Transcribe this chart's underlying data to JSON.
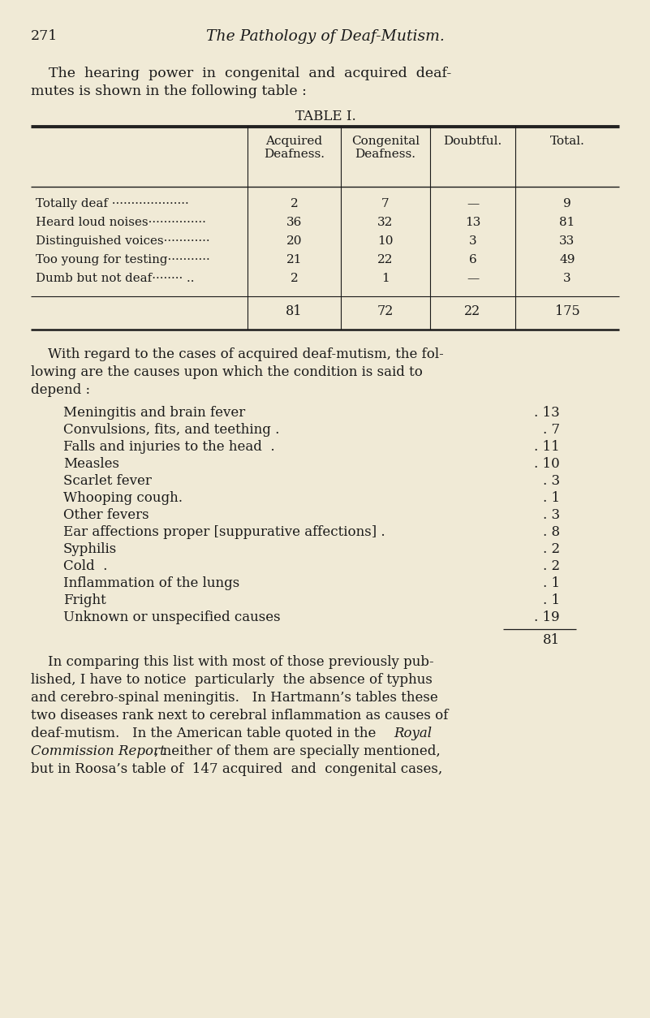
{
  "bg_color": "#f0ead6",
  "text_color": "#1a1a1a",
  "page_number": "271",
  "page_title": "The Pathology of Deaf-Mutism.",
  "table_title": "TABLE I.",
  "table_headers_line1": [
    "",
    "Acquired",
    "Congenital",
    "Doubtful.",
    "Total."
  ],
  "table_headers_line2": [
    "",
    "Deafness.",
    "Deafness.",
    "",
    ""
  ],
  "table_rows": [
    [
      "Totally deaf ······················",
      "2",
      "7",
      "—",
      "9"
    ],
    [
      "Heard loud noises······················",
      "36",
      "32",
      "13",
      "81"
    ],
    [
      "Distinguished voices······················",
      "20",
      "10",
      "3",
      "33"
    ],
    [
      "Too young for testing······················",
      "21",
      "22",
      "6",
      "49"
    ],
    [
      "Dumb but not deaf········ ..",
      "2",
      "1",
      "—",
      "3"
    ]
  ],
  "table_totals": [
    "",
    "81",
    "72",
    "22",
    "175"
  ],
  "para2_lines": [
    "    With regard to the cases of acquired deaf-mutism, the fol-",
    "lowing are the causes upon which the condition is said to",
    "depend :"
  ],
  "causes": [
    [
      "Meningitis and brain fever",
      ". . . . 13"
    ],
    [
      "Convulsions, fits, and teething .",
      ". . . 7"
    ],
    [
      "Falls and injuries to the head .",
      ". . . 11"
    ],
    [
      "Measles",
      ". . . . . . . 10"
    ],
    [
      "Scarlet fever",
      ". . . . . . 3"
    ],
    [
      "Whooping cough.",
      ". . . . . 1"
    ],
    [
      "Other fevers",
      ". . . . . . 3"
    ],
    [
      "Ear affections proper [suppurative affections] .",
      "8"
    ],
    [
      "Syphilis",
      ". . . . . . . 2"
    ],
    [
      "Cold  .",
      ". . . . . . . 2"
    ],
    [
      "Inflammation of the lungs",
      ". . . . 1"
    ],
    [
      "Fright",
      ". . . . . . . 1"
    ],
    [
      "Unknown or unspecified causes",
      ". . . 19"
    ]
  ],
  "causes_total": "81",
  "para3_lines": [
    [
      "    In comparing this list with most of those previously pub-",
      "normal"
    ],
    [
      "lished, I have to notice  particularly  the absence of typhus",
      "normal"
    ],
    [
      "and cerebro-spinal meningitis.   In Hartmann’s tables these",
      "normal"
    ],
    [
      "two diseases rank next to cerebral inflammation as causes of",
      "normal"
    ],
    [
      "deaf-mutism.   In the American table quoted in the ",
      "normal_then_italic"
    ],
    [
      "Commission Report",
      "italic_then_normal"
    ],
    [
      "but in Roosa’s table of  147 acquired  and  congenital cases,",
      "normal"
    ]
  ],
  "col_dividers": [
    305,
    420,
    530,
    635
  ],
  "tl": 38,
  "tr": 763
}
